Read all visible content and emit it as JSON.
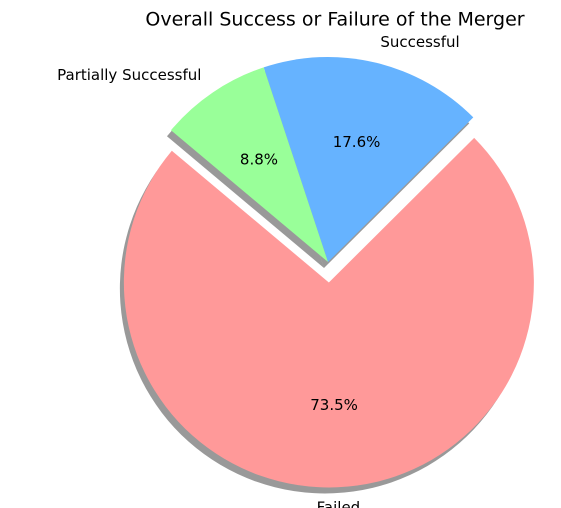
{
  "chart_data": {
    "type": "pie",
    "title": "Overall Success or Failure of the Merger",
    "categories": [
      "Failed",
      "Successful",
      "Partially Successful"
    ],
    "values": [
      73.5,
      17.6,
      8.8
    ],
    "value_labels": [
      "73.5%",
      "17.6%",
      "8.8%"
    ],
    "colors": [
      "#ff9999",
      "#66b3ff",
      "#99ff99"
    ],
    "explode": [
      0.1,
      0,
      0
    ],
    "shadow": true
  }
}
